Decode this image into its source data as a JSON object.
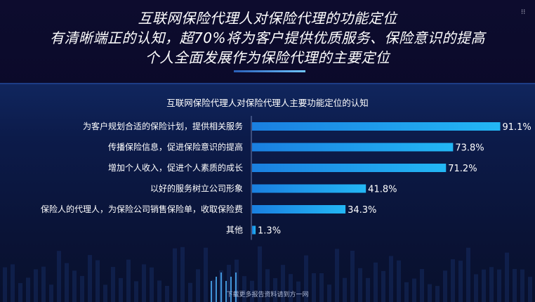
{
  "headline": {
    "line1": "互联网保险代理人对保险代理的功能定位",
    "line2": "有清晰端正的认知，超70%将为客户提供优质服务、保险意识的提高",
    "line3": "个人全面发展作为保险代理的主要定位"
  },
  "corner_mark": "⁝⁝",
  "footer": "下载更多报告资料请到方一网",
  "colors": {
    "bar_start": "#1a7fe0",
    "bar_end": "#23b7f5",
    "axis": "#6d7fae"
  },
  "chart_data": {
    "type": "bar",
    "orientation": "horizontal",
    "title": "互联网保险代理人对保险代理人主要功能定位的认知",
    "categories": [
      "为客户规划合适的保险计划，提供相关服务",
      "传播保险信息，促进保险意识的提高",
      "增加个人收入，促进个人素质的成长",
      "以好的服务树立公司形象",
      "保险人的代理人，为保险公司销售保险单，收取保险费",
      "其他"
    ],
    "values": [
      91.1,
      73.8,
      71.2,
      41.8,
      34.3,
      1.3
    ],
    "value_labels": [
      "91.1%",
      "73.8%",
      "71.2%",
      "41.8%",
      "34.3%",
      "1.3%"
    ],
    "xlim": [
      0,
      100
    ],
    "grid": false
  }
}
